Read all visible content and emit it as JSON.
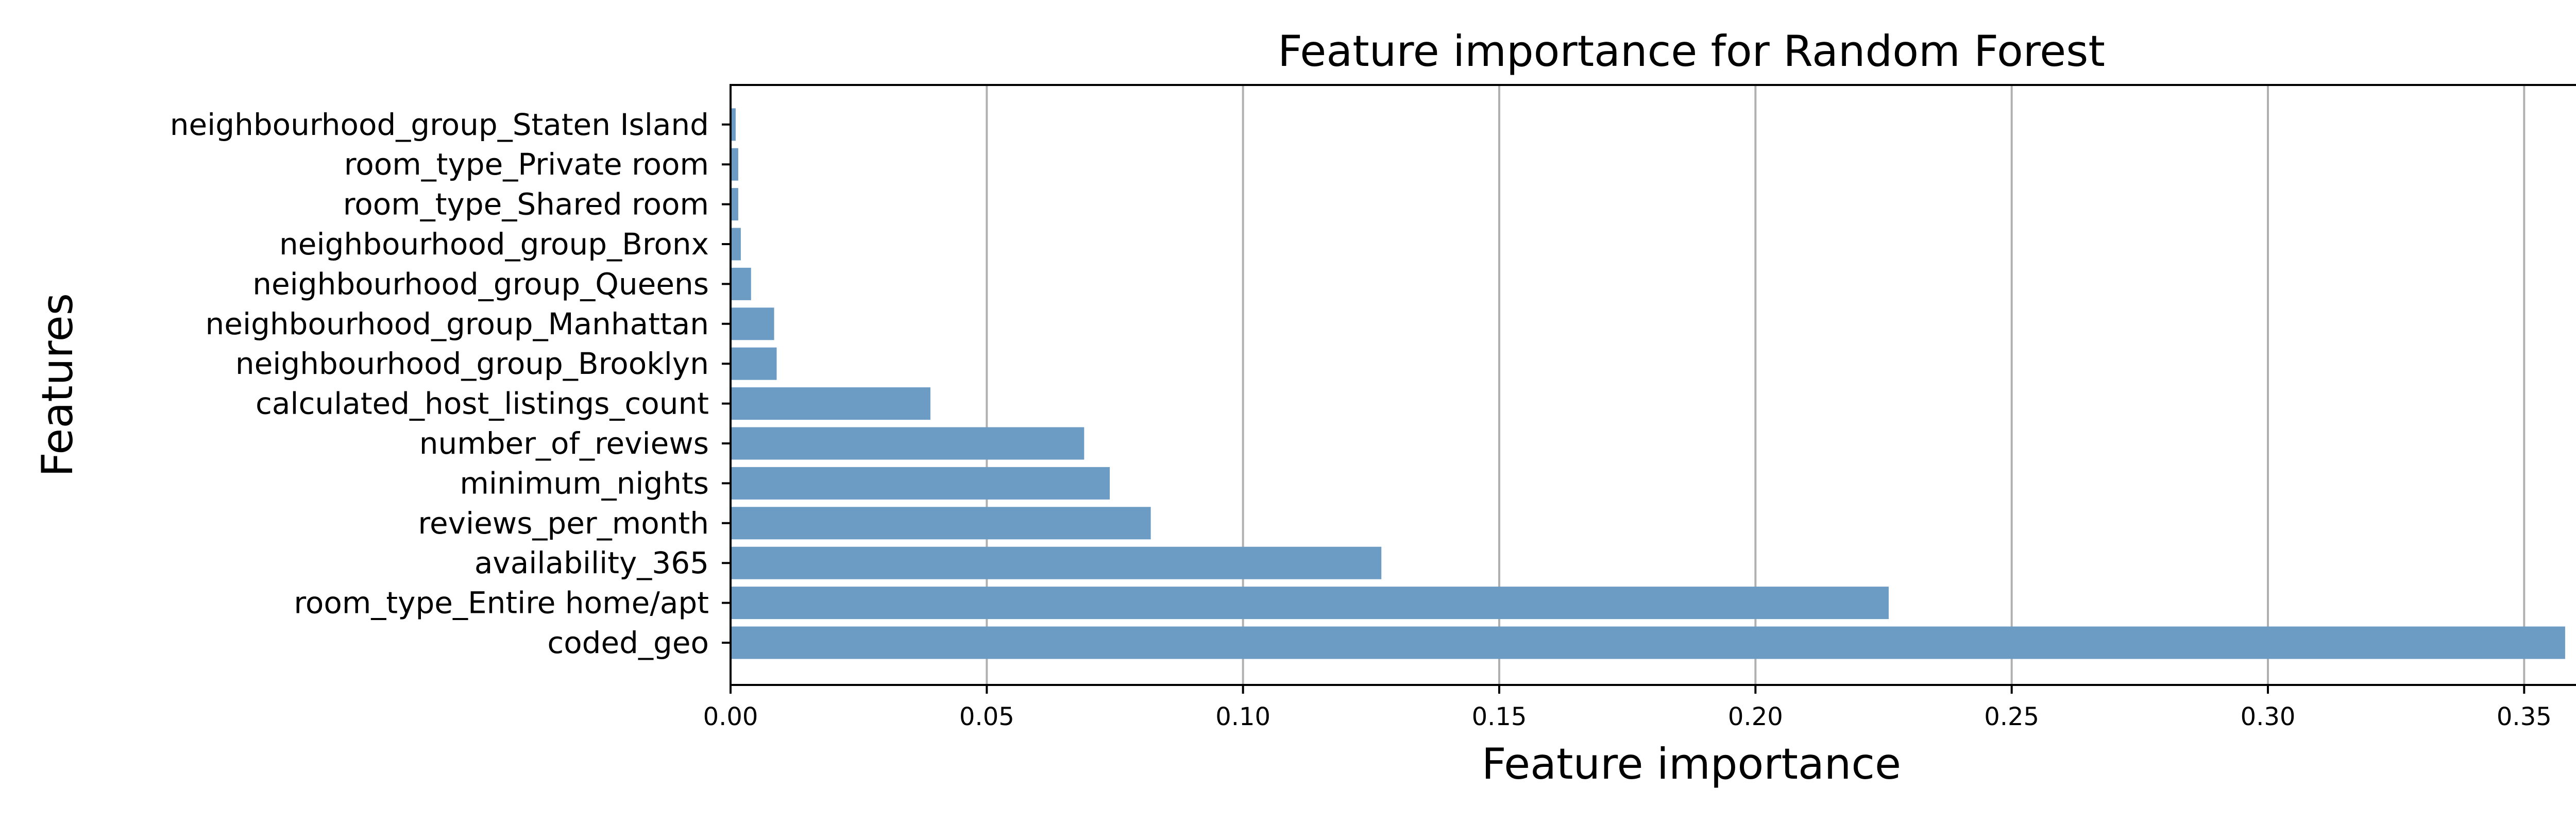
{
  "chart_data": {
    "type": "bar",
    "orientation": "horizontal",
    "title": "Feature importance for Random Forest",
    "xlabel": "Feature importance",
    "ylabel": "Features",
    "xlim": [
      0,
      0.375
    ],
    "xticks": [
      "0.00",
      "0.05",
      "0.10",
      "0.15",
      "0.20",
      "0.25",
      "0.30",
      "0.35"
    ],
    "grid": "x",
    "bar_color": "#6c9bc4",
    "categories": [
      "coded_geo",
      "room_type_Entire home/apt",
      "availability_365",
      "reviews_per_month",
      "minimum_nights",
      "number_of_reviews",
      "calculated_host_listings_count",
      "neighbourhood_group_Brooklyn",
      "neighbourhood_group_Manhattan",
      "neighbourhood_group_Queens",
      "neighbourhood_group_Bronx",
      "room_type_Shared room",
      "room_type_Private room",
      "neighbourhood_group_Staten Island"
    ],
    "values": [
      0.358,
      0.226,
      0.127,
      0.082,
      0.074,
      0.069,
      0.039,
      0.009,
      0.0085,
      0.004,
      0.002,
      0.0015,
      0.0015,
      0.001
    ]
  }
}
